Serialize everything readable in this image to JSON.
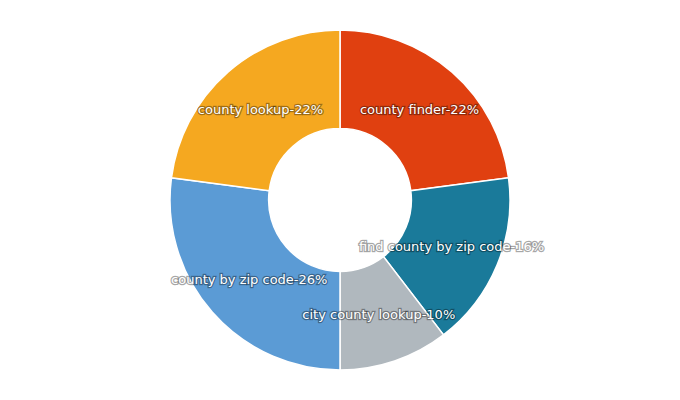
{
  "chart_data": {
    "type": "donut",
    "values": [
      22,
      16,
      10,
      26,
      22
    ],
    "value_labels": [
      "county finder-22%",
      "find county by zip code-16%",
      "city county lookup-10%",
      "county by zip code-26%",
      "county lookup-22%"
    ],
    "colors": [
      "#E04010",
      "#1A7A9A",
      "#B0B8BE",
      "#5B9BD5",
      "#F5A820"
    ],
    "data_labels": true
  }
}
